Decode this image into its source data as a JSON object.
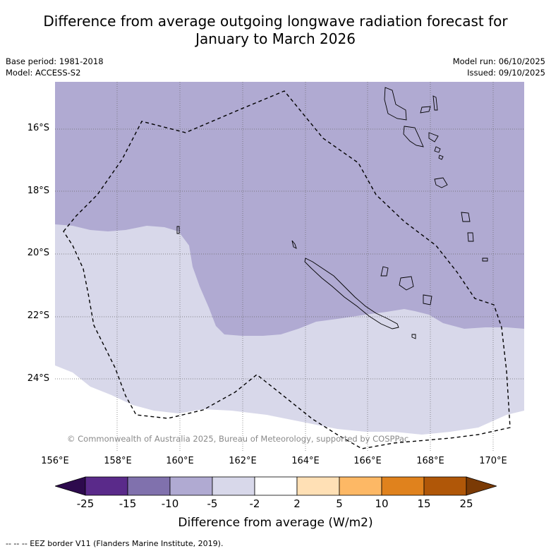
{
  "title": {
    "line1": "Difference from average outgoing longwave radiation forecast for",
    "line2": "January to March 2026"
  },
  "meta": {
    "base_period": "Base period: 1981-2018",
    "model": "Model: ACCESS-S2",
    "model_run": "Model run: 06/10/2025",
    "issued": "Issued: 09/10/2025"
  },
  "map": {
    "lat_labels": [
      "16°S",
      "18°S",
      "20°S",
      "22°S",
      "24°S"
    ],
    "lon_labels": [
      "156°E",
      "158°E",
      "160°E",
      "162°E",
      "164°E",
      "166°E",
      "168°E",
      "170°E"
    ],
    "copyright": "© Commonwealth of Australia 2025, Bureau of Meteorology, supported by COSPPac"
  },
  "colorbar": {
    "ticks": [
      "-25",
      "-15",
      "-10",
      "-5",
      "-2",
      "2",
      "5",
      "10",
      "15",
      "25"
    ],
    "colors": {
      "below_-25": "#2d0a4d",
      "-25_-15": "#5a2a8a",
      "-15_-10": "#8071ad",
      "-10_-5": "#b0aad2",
      "-5_-2": "#d8d8ea",
      "-2_2": "#ffffff",
      "2_5": "#ffe0b5",
      "5_10": "#fdb865",
      "10_15": "#e0821d",
      "15_25": "#b05708",
      "above_25": "#7a3a05"
    },
    "title": "Difference from average (W/m2)"
  },
  "footnote": "--  --  -- EEZ border V11 (Flanders Marine Institute, 2019)."
}
